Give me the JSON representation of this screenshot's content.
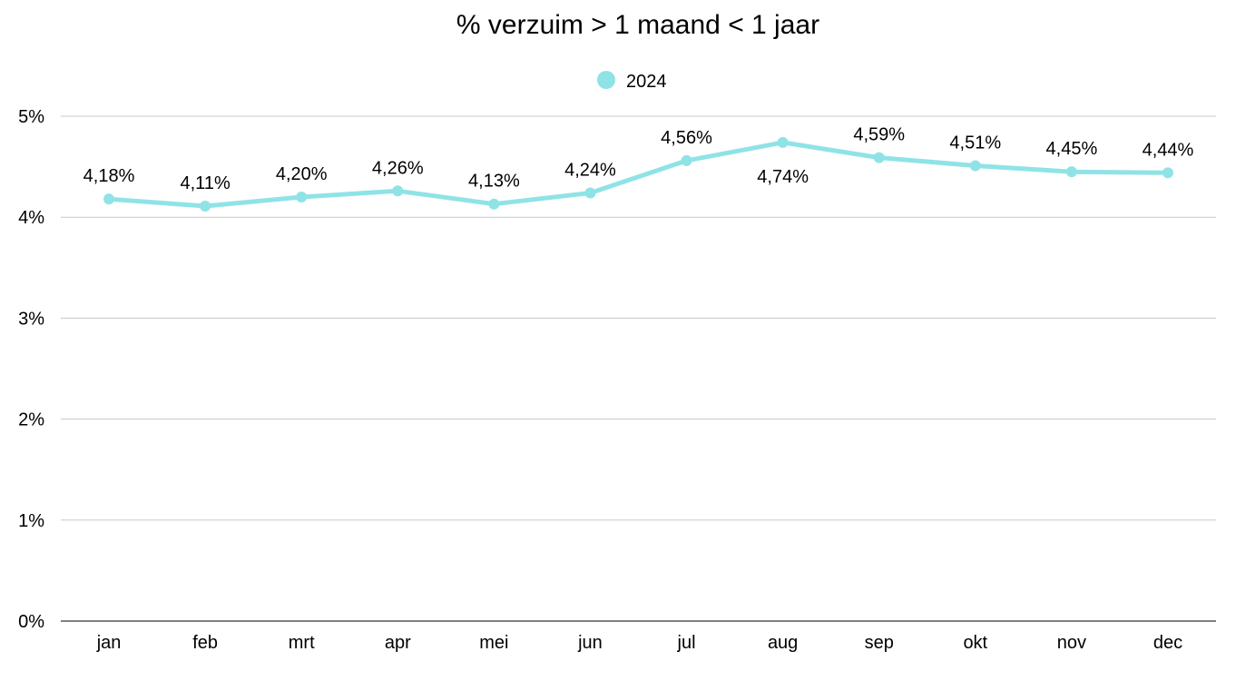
{
  "chart_data": {
    "type": "line",
    "title": "% verzuim > 1 maand < 1 jaar",
    "categories": [
      "jan",
      "feb",
      "mrt",
      "apr",
      "mei",
      "jun",
      "jul",
      "aug",
      "sep",
      "okt",
      "nov",
      "dec"
    ],
    "series": [
      {
        "name": "2024",
        "color": "#8fe3e6",
        "values": [
          4.18,
          4.11,
          4.2,
          4.26,
          4.13,
          4.24,
          4.56,
          4.74,
          4.59,
          4.51,
          4.45,
          4.44
        ],
        "labels": [
          "4,18%",
          "4,11%",
          "4,20%",
          "4,26%",
          "4,13%",
          "4,24%",
          "4,56%",
          "4,74%",
          "4,59%",
          "4,51%",
          "4,45%",
          "4,44%"
        ]
      }
    ],
    "ylim": [
      0,
      5
    ],
    "yticks": [
      0,
      1,
      2,
      3,
      4,
      5
    ],
    "ytick_labels": [
      "0%",
      "1%",
      "2%",
      "3%",
      "4%",
      "5%"
    ],
    "xlabel": "",
    "ylabel": "",
    "grid": true,
    "legend": "top-center"
  }
}
